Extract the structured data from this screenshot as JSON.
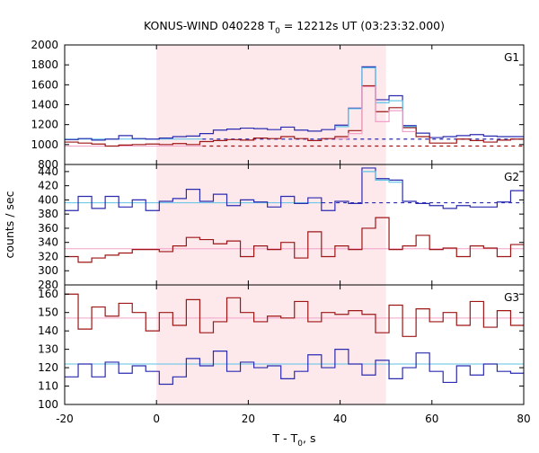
{
  "chart_data": {
    "type": "line",
    "title": "KONUS-WIND 040228 T",
    "title_sub": "0",
    "title_rest": " = 12212s UT (03:23:32.000)",
    "xlabel": "T - T",
    "xlabel_sub": "0",
    "xlabel_rest": ", s",
    "ylabel": "counts / sec",
    "xlim": [
      -20,
      80
    ],
    "xticks": [
      "-20",
      "0",
      "20",
      "40",
      "60",
      "80"
    ],
    "highlight_interval": [
      0,
      50
    ],
    "colors": {
      "dark_blue": "#2b2bb0",
      "dark_red": "#9e1616",
      "light_blue": "#5cc2e6",
      "pink": "#f2a2c8",
      "highlight": "#fde8ec"
    },
    "panels": [
      {
        "name": "G1",
        "ylim": [
          800,
          2000
        ],
        "yticks": [
          "800",
          "1000",
          "1200",
          "1400",
          "1600",
          "1800",
          "2000"
        ],
        "bin_start": -20,
        "bin_width": 2.944,
        "blue": [
          1050,
          1060,
          1045,
          1055,
          1090,
          1060,
          1055,
          1065,
          1080,
          1085,
          1110,
          1145,
          1155,
          1165,
          1160,
          1150,
          1175,
          1145,
          1135,
          1150,
          1195,
          1365,
          1780,
          1450,
          1490,
          1190,
          1115,
          1070,
          1080,
          1090,
          1100,
          1085,
          1080,
          1080,
          1080
        ],
        "red": [
          1025,
          1015,
          1005,
          985,
          995,
          1000,
          1005,
          1000,
          1010,
          1000,
          1030,
          1040,
          1050,
          1045,
          1065,
          1060,
          1080,
          1060,
          1040,
          1060,
          1080,
          1140,
          1590,
          1330,
          1370,
          1170,
          1080,
          1015,
          1015,
          1055,
          1040,
          1025,
          1045,
          1055,
          1050
        ],
        "light_top": [
          null,
          null,
          null,
          null,
          null,
          null,
          null,
          null,
          null,
          null,
          null,
          null,
          null,
          null,
          null,
          null,
          null,
          null,
          null,
          null,
          1180,
          1360,
          1770,
          1420,
          1440,
          1180,
          null,
          null,
          null,
          null,
          null,
          null,
          null,
          null,
          null
        ],
        "pink_top": [
          null,
          null,
          null,
          null,
          null,
          null,
          null,
          null,
          null,
          null,
          null,
          null,
          null,
          null,
          null,
          null,
          null,
          null,
          null,
          null,
          1060,
          1110,
          1580,
          1230,
          1340,
          1130,
          null,
          null,
          null,
          null,
          null,
          null,
          null,
          null,
          null
        ],
        "bg_blue": 1055,
        "bg_red": 985,
        "bg_blue_dashed_from": 10,
        "bg_red_dashed_from": 10
      },
      {
        "name": "G2",
        "ylim": [
          280,
          450
        ],
        "yticks": [
          "280",
          "300",
          "320",
          "340",
          "360",
          "380",
          "400",
          "420",
          "440"
        ],
        "bin_start": -20,
        "bin_width": 2.944,
        "blue": [
          385,
          405,
          388,
          405,
          390,
          400,
          385,
          398,
          402,
          415,
          398,
          408,
          392,
          400,
          397,
          390,
          405,
          395,
          403,
          385,
          398,
          395,
          445,
          430,
          428,
          398,
          395,
          392,
          388,
          392,
          390,
          390,
          397,
          413,
          395
        ],
        "red": [
          320,
          312,
          318,
          322,
          325,
          330,
          330,
          327,
          335,
          347,
          344,
          338,
          342,
          320,
          335,
          330,
          340,
          318,
          355,
          320,
          335,
          330,
          360,
          375,
          330,
          335,
          350,
          330,
          332,
          320,
          335,
          332,
          320,
          337,
          325
        ],
        "light_top": [
          null,
          null,
          null,
          null,
          null,
          null,
          null,
          null,
          null,
          null,
          null,
          null,
          null,
          null,
          null,
          null,
          null,
          null,
          null,
          null,
          null,
          null,
          440,
          428,
          425,
          null,
          null,
          null,
          null,
          null,
          null,
          null,
          null,
          null,
          null
        ],
        "bg_blue": 396,
        "bg_red": 331,
        "bg_blue_dashed_from": 36
      },
      {
        "name": "G3",
        "ylim": [
          100,
          165
        ],
        "yticks": [
          "100",
          "110",
          "120",
          "130",
          "140",
          "150",
          "160"
        ],
        "bin_start": -20,
        "bin_width": 2.944,
        "blue": [
          115,
          122,
          115,
          123,
          117,
          121,
          118,
          111,
          115,
          125,
          121,
          129,
          118,
          123,
          120,
          121,
          114,
          118,
          127,
          120,
          130,
          122,
          116,
          124,
          114,
          120,
          128,
          118,
          112,
          121,
          116,
          122,
          118,
          117,
          122
        ],
        "red": [
          160,
          141,
          153,
          148,
          155,
          150,
          140,
          150,
          143,
          157,
          139,
          145,
          158,
          150,
          145,
          148,
          147,
          156,
          145,
          150,
          149,
          151,
          149,
          139,
          154,
          137,
          152,
          145,
          150,
          143,
          156,
          142,
          151,
          143,
          148
        ],
        "bg_blue": 122,
        "bg_red": 147
      }
    ]
  }
}
